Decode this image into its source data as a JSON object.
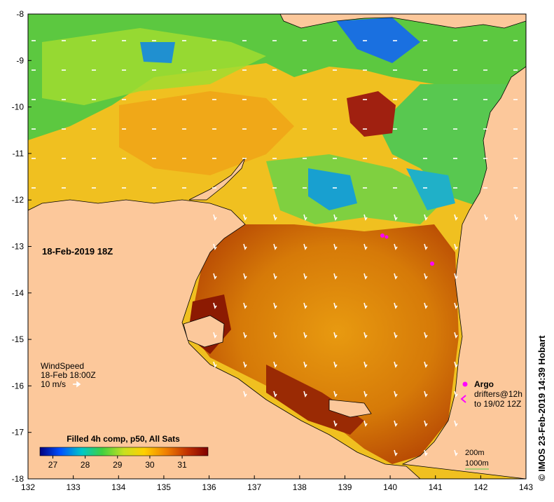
{
  "map": {
    "timestamp": "18-Feb-2019 18Z",
    "x_ticks": [
      "132",
      "133",
      "134",
      "135",
      "136",
      "137",
      "138",
      "139",
      "140",
      "141",
      "142",
      "143"
    ],
    "y_ticks": [
      "-8",
      "-9",
      "-10",
      "-11",
      "-12",
      "-13",
      "-14",
      "-15",
      "-16",
      "-17",
      "-18"
    ],
    "lon_range": [
      132,
      143
    ],
    "lat_range": [
      -18,
      -8
    ],
    "colors": {
      "land": "#fcc89b",
      "water_base": "#e6a516",
      "frame": "#000000"
    }
  },
  "wind_legend": {
    "title": "WindSpeed",
    "time": "18-Feb 18:00Z",
    "speed_label": "10 m/s"
  },
  "colorbar": {
    "title": "Filled 4h comp, p50, All Sats",
    "ticks": [
      "27",
      "28",
      "29",
      "30",
      "31"
    ],
    "tick_values": [
      27,
      28,
      29,
      30,
      31
    ],
    "range": [
      26.6,
      31.8
    ],
    "colors": [
      "#000080",
      "#0050ff",
      "#00c8c8",
      "#40d040",
      "#c8e020",
      "#ffd000",
      "#f08000",
      "#c03000",
      "#800000"
    ]
  },
  "argo_legend": {
    "label": "Argo",
    "drifters_line1": "drifters@12h",
    "drifters_line2": "to 19/02 12Z",
    "color": "#ff00ff"
  },
  "depth_legend": {
    "contour_200": "200m",
    "contour_1000": "1000m"
  },
  "credit": "© IMOS 23-Feb-2019 14:39 Hobart"
}
